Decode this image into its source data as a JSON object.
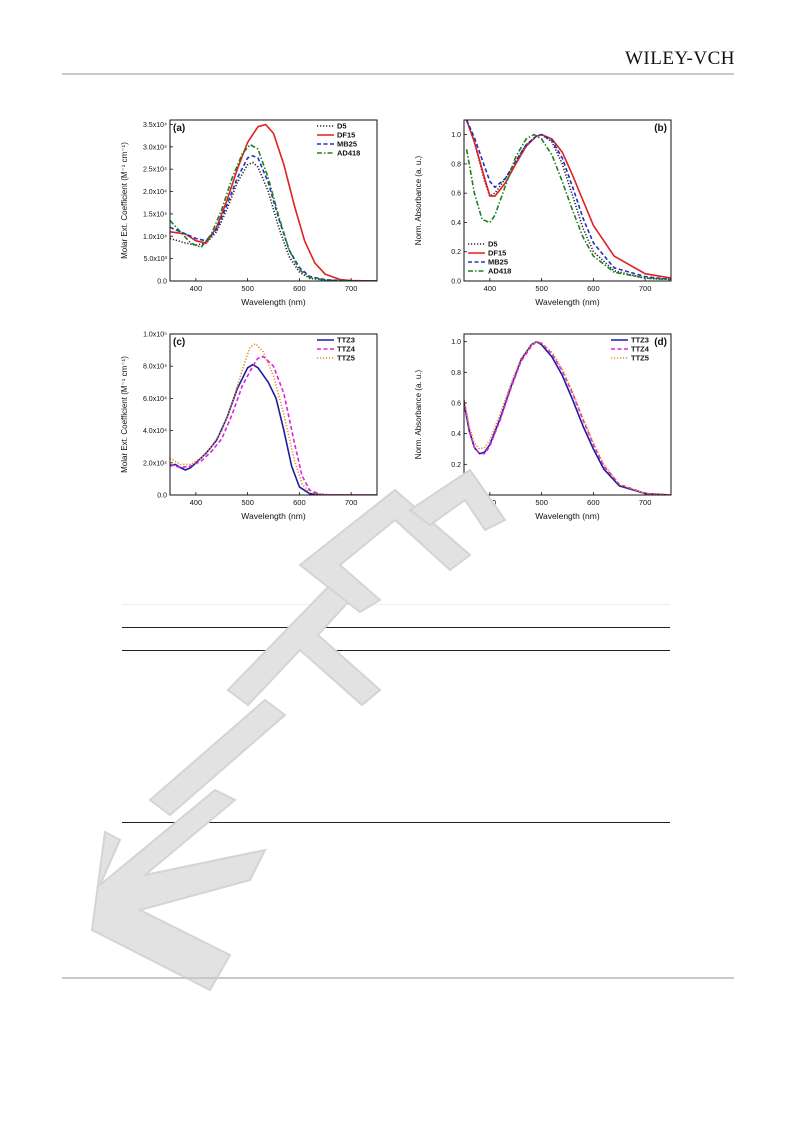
{
  "header": {
    "logo_text": "WILEY-VCH"
  },
  "figure": {
    "panels": [
      {
        "panel_label": "(a)",
        "xlabel": "Wavelength (nm)",
        "ylabel": "Molar Ext. Coefficient (M⁻¹ cm⁻¹)",
        "xlim": [
          350,
          750
        ],
        "ylim": [
          0,
          36000
        ],
        "xticks": [
          400,
          500,
          600,
          700
        ],
        "yticks": [
          {
            "v": 0,
            "label": "0.0"
          },
          {
            "v": 5000,
            "label": "5.0x10³"
          },
          {
            "v": 10000,
            "label": "1.0x10⁴"
          },
          {
            "v": 15000,
            "label": "1.5x10⁴"
          },
          {
            "v": 20000,
            "label": "2.0x10⁴"
          },
          {
            "v": 25000,
            "label": "2.5x10⁴"
          },
          {
            "v": 30000,
            "label": "3.0x10⁴"
          },
          {
            "v": 35000,
            "label": "3.5x10⁴"
          }
        ],
        "legend_position": "top-right"
      },
      {
        "panel_label": "(b)",
        "xlabel": "Wavelength (nm)",
        "ylabel": "Norm. Absorbance (a. u.)",
        "xlim": [
          350,
          750
        ],
        "ylim": [
          0,
          1.1
        ],
        "xticks": [
          400,
          500,
          600,
          700
        ],
        "yticks": [
          {
            "v": 0,
            "label": "0.0"
          },
          {
            "v": 0.2,
            "label": "0.2"
          },
          {
            "v": 0.4,
            "label": "0.4"
          },
          {
            "v": 0.6,
            "label": "0.6"
          },
          {
            "v": 0.8,
            "label": "0.8"
          },
          {
            "v": 1.0,
            "label": "1.0"
          }
        ],
        "legend_position": "bottom-left"
      },
      {
        "panel_label": "(c)",
        "xlabel": "Wavelength (nm)",
        "ylabel": "Molar Ext. Coefficient (M⁻¹ cm⁻¹)",
        "xlim": [
          350,
          750
        ],
        "ylim": [
          0,
          100000
        ],
        "xticks": [
          400,
          500,
          600,
          700
        ],
        "yticks": [
          {
            "v": 0,
            "label": "0.0"
          },
          {
            "v": 20000,
            "label": "2.0x10⁴"
          },
          {
            "v": 40000,
            "label": "4.0x10⁴"
          },
          {
            "v": 60000,
            "label": "6.0x10⁴"
          },
          {
            "v": 80000,
            "label": "8.0x10⁴"
          },
          {
            "v": 100000,
            "label": "1.0x10⁵"
          }
        ],
        "legend_position": "top-right"
      },
      {
        "panel_label": "(d)",
        "xlabel": "Wavelength (nm)",
        "ylabel": "Norm. Absorbance (a. u.)",
        "xlim": [
          350,
          750
        ],
        "ylim": [
          0,
          1.05
        ],
        "xticks": [
          400,
          500,
          600,
          700
        ],
        "yticks": [
          {
            "v": 0,
            "label": "0.0"
          },
          {
            "v": 0.2,
            "label": "0.2"
          },
          {
            "v": 0.4,
            "label": "0.4"
          },
          {
            "v": 0.6,
            "label": "0.6"
          },
          {
            "v": 0.8,
            "label": "0.8"
          },
          {
            "v": 1.0,
            "label": "1.0"
          }
        ],
        "legend_position": "top-right"
      }
    ]
  },
  "chart_data": [
    {
      "type": "line",
      "panel": "(a)",
      "xlabel": "Wavelength (nm)",
      "ylabel": "Molar Ext. Coefficient (M⁻¹ cm⁻¹)",
      "xlim": [
        350,
        750
      ],
      "ylim": [
        0,
        36000
      ],
      "series": [
        {
          "name": "D5",
          "color": "#222222",
          "style": "dotted",
          "x": [
            350,
            380,
            400,
            420,
            440,
            460,
            480,
            500,
            510,
            520,
            540,
            560,
            580,
            600,
            620,
            650,
            700,
            750
          ],
          "y": [
            9500,
            8500,
            8000,
            8500,
            11000,
            16000,
            22000,
            26000,
            26500,
            25500,
            20000,
            12000,
            5500,
            2000,
            600,
            150,
            0,
            0
          ]
        },
        {
          "name": "DF15",
          "color": "#e02020",
          "style": "solid",
          "x": [
            350,
            380,
            400,
            420,
            440,
            460,
            480,
            500,
            520,
            535,
            550,
            570,
            590,
            610,
            630,
            650,
            680,
            700,
            750
          ],
          "y": [
            11000,
            10500,
            9000,
            8500,
            12000,
            18000,
            25000,
            31000,
            34500,
            35000,
            33000,
            26000,
            17000,
            9000,
            4000,
            1500,
            300,
            100,
            0
          ]
        },
        {
          "name": "MB25",
          "color": "#2030c0",
          "style": "dashed",
          "x": [
            350,
            380,
            400,
            420,
            440,
            460,
            480,
            500,
            510,
            520,
            540,
            560,
            580,
            600,
            620,
            650,
            700,
            750
          ],
          "y": [
            12000,
            10500,
            9500,
            9000,
            11500,
            17000,
            23000,
            27500,
            28000,
            27500,
            22000,
            14000,
            7000,
            3000,
            1000,
            300,
            0,
            0
          ]
        },
        {
          "name": "AD418",
          "color": "#208020",
          "style": "dash-dot",
          "x": [
            350,
            370,
            390,
            410,
            430,
            450,
            470,
            490,
            505,
            520,
            540,
            560,
            580,
            600,
            620,
            650,
            700,
            750
          ],
          "y": [
            13500,
            11000,
            8500,
            7500,
            10500,
            16000,
            23000,
            28500,
            30500,
            29500,
            23000,
            14500,
            7000,
            2500,
            800,
            200,
            0,
            0
          ]
        }
      ]
    },
    {
      "type": "line",
      "panel": "(b)",
      "xlabel": "Wavelength (nm)",
      "ylabel": "Norm. Absorbance (a. u.)",
      "xlim": [
        350,
        750
      ],
      "ylim": [
        0,
        1.1
      ],
      "series": [
        {
          "name": "D5",
          "color": "#222222",
          "style": "dotted",
          "x": [
            355,
            370,
            390,
            400,
            410,
            430,
            450,
            470,
            490,
            500,
            520,
            540,
            560,
            580,
            600,
            640,
            700,
            750
          ],
          "y": [
            1.1,
            0.95,
            0.68,
            0.58,
            0.6,
            0.7,
            0.82,
            0.93,
            0.99,
            1.0,
            0.95,
            0.8,
            0.58,
            0.36,
            0.2,
            0.07,
            0.02,
            0.01
          ]
        },
        {
          "name": "DF15",
          "color": "#e02020",
          "style": "solid",
          "x": [
            355,
            370,
            390,
            400,
            410,
            430,
            450,
            470,
            490,
            500,
            520,
            540,
            560,
            580,
            600,
            640,
            700,
            750
          ],
          "y": [
            1.1,
            0.95,
            0.7,
            0.58,
            0.58,
            0.67,
            0.8,
            0.92,
            0.99,
            1.0,
            0.97,
            0.88,
            0.72,
            0.55,
            0.38,
            0.17,
            0.05,
            0.02
          ]
        },
        {
          "name": "MB25",
          "color": "#2030c0",
          "style": "dashed",
          "x": [
            355,
            370,
            390,
            400,
            410,
            430,
            450,
            470,
            490,
            500,
            520,
            540,
            560,
            580,
            600,
            640,
            700,
            750
          ],
          "y": [
            1.1,
            0.98,
            0.78,
            0.68,
            0.64,
            0.7,
            0.82,
            0.93,
            0.99,
            1.0,
            0.96,
            0.84,
            0.64,
            0.43,
            0.26,
            0.09,
            0.03,
            0.01
          ]
        },
        {
          "name": "AD418",
          "color": "#208020",
          "style": "dash-dot",
          "x": [
            355,
            370,
            385,
            400,
            410,
            430,
            450,
            470,
            485,
            500,
            520,
            540,
            560,
            580,
            600,
            640,
            700,
            750
          ],
          "y": [
            0.9,
            0.6,
            0.42,
            0.4,
            0.45,
            0.65,
            0.85,
            0.97,
            1.0,
            0.97,
            0.86,
            0.68,
            0.48,
            0.3,
            0.17,
            0.06,
            0.02,
            0.01
          ]
        }
      ]
    },
    {
      "type": "line",
      "panel": "(c)",
      "xlabel": "Wavelength (nm)",
      "ylabel": "Molar Ext. Coefficient (M⁻¹ cm⁻¹)",
      "xlim": [
        350,
        750
      ],
      "ylim": [
        0,
        100000
      ],
      "series": [
        {
          "name": "TTZ3",
          "color": "#1c1c9c",
          "style": "solid",
          "x": [
            350,
            360,
            370,
            380,
            390,
            400,
            420,
            440,
            460,
            480,
            500,
            510,
            520,
            540,
            555,
            570,
            585,
            600,
            620,
            650,
            700,
            750
          ],
          "y": [
            18000,
            19000,
            17000,
            15500,
            17000,
            20000,
            26000,
            34000,
            48000,
            66000,
            79000,
            81000,
            79000,
            70000,
            60000,
            40000,
            18000,
            5000,
            800,
            100,
            0,
            0
          ]
        },
        {
          "name": "TTZ4",
          "color": "#e020e0",
          "style": "dashed",
          "x": [
            350,
            370,
            390,
            410,
            430,
            450,
            470,
            490,
            510,
            520,
            530,
            550,
            570,
            590,
            605,
            620,
            640,
            660,
            700,
            750
          ],
          "y": [
            19000,
            17000,
            18000,
            21000,
            27000,
            35000,
            50000,
            68000,
            80000,
            85000,
            86000,
            80000,
            63000,
            33000,
            12000,
            3000,
            500,
            100,
            0,
            0
          ]
        },
        {
          "name": "TTZ5",
          "color": "#e09020",
          "style": "dotted",
          "x": [
            350,
            370,
            390,
            410,
            430,
            450,
            470,
            490,
            505,
            515,
            530,
            550,
            570,
            590,
            605,
            620,
            640,
            700,
            750
          ],
          "y": [
            23000,
            19000,
            19000,
            23000,
            30000,
            40000,
            57000,
            78000,
            92000,
            94000,
            89000,
            74000,
            50000,
            22000,
            7000,
            1500,
            200,
            0,
            0
          ]
        }
      ]
    },
    {
      "type": "line",
      "panel": "(d)",
      "xlabel": "Wavelength (nm)",
      "ylabel": "Norm. Absorbance (a. u.)",
      "xlim": [
        350,
        750
      ],
      "ylim": [
        0,
        1.05
      ],
      "series": [
        {
          "name": "TTZ3",
          "color": "#1c1c9c",
          "style": "solid",
          "x": [
            350,
            360,
            370,
            380,
            390,
            400,
            420,
            440,
            460,
            480,
            490,
            500,
            520,
            540,
            560,
            580,
            600,
            620,
            650,
            700,
            750
          ],
          "y": [
            0.6,
            0.42,
            0.31,
            0.27,
            0.28,
            0.33,
            0.5,
            0.7,
            0.88,
            0.98,
            1.0,
            0.98,
            0.9,
            0.78,
            0.62,
            0.45,
            0.3,
            0.17,
            0.06,
            0.01,
            0.0
          ]
        },
        {
          "name": "TTZ4",
          "color": "#e020e0",
          "style": "dashed",
          "x": [
            350,
            360,
            370,
            380,
            390,
            400,
            420,
            440,
            460,
            480,
            490,
            500,
            520,
            540,
            560,
            580,
            600,
            620,
            650,
            700,
            750
          ],
          "y": [
            0.62,
            0.43,
            0.31,
            0.27,
            0.27,
            0.32,
            0.49,
            0.69,
            0.87,
            0.97,
            1.0,
            0.99,
            0.92,
            0.81,
            0.66,
            0.49,
            0.33,
            0.19,
            0.07,
            0.01,
            0.0
          ]
        },
        {
          "name": "TTZ5",
          "color": "#e09020",
          "style": "dotted",
          "x": [
            350,
            360,
            370,
            380,
            390,
            400,
            420,
            440,
            460,
            480,
            490,
            500,
            520,
            540,
            560,
            580,
            600,
            620,
            650,
            700,
            750
          ],
          "y": [
            0.62,
            0.45,
            0.34,
            0.3,
            0.31,
            0.36,
            0.53,
            0.72,
            0.89,
            0.98,
            1.0,
            0.99,
            0.93,
            0.82,
            0.67,
            0.5,
            0.34,
            0.2,
            0.07,
            0.01,
            0.0
          ]
        }
      ]
    }
  ],
  "colors": {
    "rule_gray": "#c8c8c8",
    "watermark": "#dcdcdc"
  }
}
